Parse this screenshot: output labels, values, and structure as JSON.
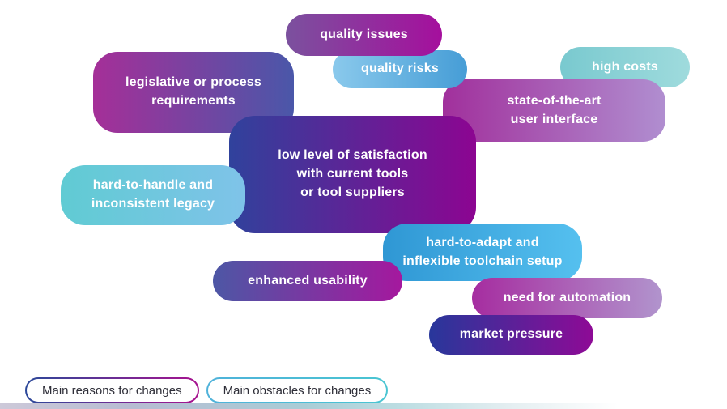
{
  "bubbles": [
    {
      "id": "quality-issues",
      "label": "quality issues",
      "color_start": "#7b519e",
      "color_end": "#a50f9d"
    },
    {
      "id": "quality-risks",
      "label": "quality risks",
      "color_start": "#8ac9ec",
      "color_end": "#469dd6"
    },
    {
      "id": "high-costs",
      "label": "high costs",
      "color_start": "#79c9cf",
      "color_end": "#9fdbdd"
    },
    {
      "id": "legislative",
      "label": "legislative or process\nrequirements",
      "color_start": "#a52f98",
      "color_end": "#4a57a9"
    },
    {
      "id": "state-of-the-art",
      "label": "state-of-the-art\nuser interface",
      "color_start": "#a1309c",
      "color_end": "#b08ed0"
    },
    {
      "id": "low-satisfaction",
      "label": "low level of satisfaction\nwith current tools\nor tool suppliers",
      "color_start": "#30429c",
      "color_end": "#8c0591"
    },
    {
      "id": "legacy",
      "label": "hard-to-handle and\ninconsistent legacy",
      "color_start": "#60cbd3",
      "color_end": "#7fc3e9"
    },
    {
      "id": "toolchain",
      "label": "hard-to-adapt and\ninflexible toolchain setup",
      "color_start": "#2f97d4",
      "color_end": "#55c0ef"
    },
    {
      "id": "usability",
      "label": "enhanced usability",
      "color_start": "#4d57a5",
      "color_end": "#a5189e"
    },
    {
      "id": "automation",
      "label": "need for automation",
      "color_start": "#a62da0",
      "color_end": "#b194cd"
    },
    {
      "id": "market-pressure",
      "label": "market pressure",
      "color_start": "#28379b",
      "color_end": "#8e0a96"
    }
  ],
  "legend": {
    "reasons": {
      "label": "Main reasons for changes",
      "border_start": "#2b4899",
      "border_end": "#a8128f"
    },
    "obstacles": {
      "label": "Main obstacles for changes",
      "border_start": "#4fb2da",
      "border_end": "#49c5d2"
    }
  },
  "colors": {
    "bubble_text": "#ffffff",
    "legend_text": "#2e2e38",
    "background": "#ffffff"
  }
}
